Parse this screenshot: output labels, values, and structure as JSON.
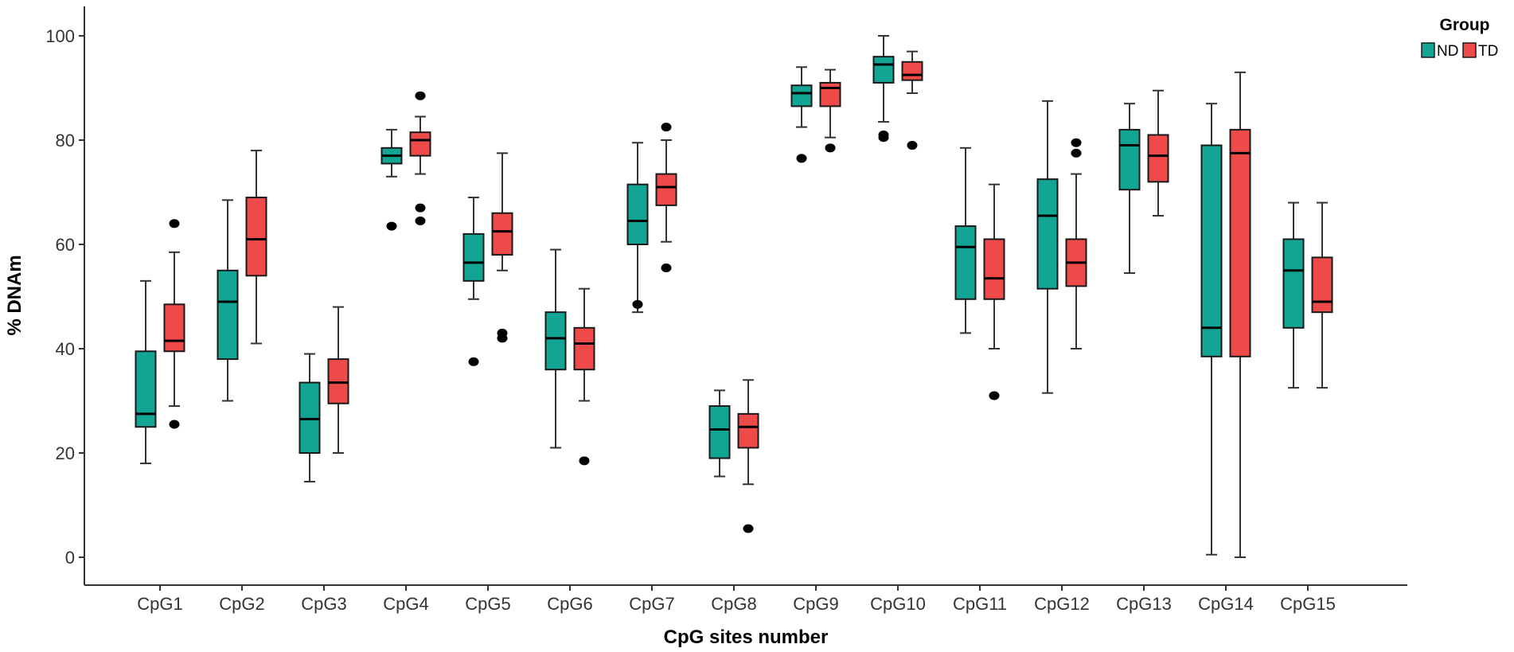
{
  "chart_data": {
    "type": "boxplot",
    "title": "",
    "xlabel": "CpG sites number",
    "ylabel": "% DNAm",
    "ylim": [
      -5,
      105
    ],
    "yticks": [
      0,
      20,
      40,
      60,
      80,
      100
    ],
    "grid": false,
    "legend": {
      "title": "Group",
      "position": "top-right"
    },
    "categories": [
      "CpG1",
      "CpG2",
      "CpG3",
      "CpG4",
      "CpG5",
      "CpG6",
      "CpG7",
      "CpG8",
      "CpG9",
      "CpG10",
      "CpG11",
      "CpG12",
      "CpG13",
      "CpG14",
      "CpG15"
    ],
    "series": [
      {
        "name": "ND",
        "color": "#13A594",
        "boxes": [
          {
            "whisker_low": 18,
            "q1": 25,
            "median": 27.5,
            "q3": 39.5,
            "whisker_high": 53,
            "outliers": []
          },
          {
            "whisker_low": 30,
            "q1": 38,
            "median": 49,
            "q3": 55,
            "whisker_high": 68.5,
            "outliers": []
          },
          {
            "whisker_low": 14.5,
            "q1": 20,
            "median": 26.5,
            "q3": 33.5,
            "whisker_high": 39,
            "outliers": []
          },
          {
            "whisker_low": 73,
            "q1": 75.5,
            "median": 77,
            "q3": 78.5,
            "whisker_high": 82,
            "outliers": [
              63.5
            ]
          },
          {
            "whisker_low": 49.5,
            "q1": 53,
            "median": 56.5,
            "q3": 62,
            "whisker_high": 69,
            "outliers": [
              37.5
            ]
          },
          {
            "whisker_low": 21,
            "q1": 36,
            "median": 42,
            "q3": 47,
            "whisker_high": 59,
            "outliers": []
          },
          {
            "whisker_low": 47,
            "q1": 60,
            "median": 64.5,
            "q3": 71.5,
            "whisker_high": 79.5,
            "outliers": [
              48.5
            ]
          },
          {
            "whisker_low": 15.5,
            "q1": 19,
            "median": 24.5,
            "q3": 29,
            "whisker_high": 32,
            "outliers": []
          },
          {
            "whisker_low": 82.5,
            "q1": 86.5,
            "median": 89,
            "q3": 90.5,
            "whisker_high": 94,
            "outliers": [
              76.5
            ]
          },
          {
            "whisker_low": 83.5,
            "q1": 91,
            "median": 94.5,
            "q3": 96,
            "whisker_high": 100,
            "outliers": [
              80.5,
              81
            ]
          },
          {
            "whisker_low": 43,
            "q1": 49.5,
            "median": 59.5,
            "q3": 63.5,
            "whisker_high": 78.5,
            "outliers": []
          },
          {
            "whisker_low": 31.5,
            "q1": 51.5,
            "median": 65.5,
            "q3": 72.5,
            "whisker_high": 87.5,
            "outliers": []
          },
          {
            "whisker_low": 54.5,
            "q1": 70.5,
            "median": 79,
            "q3": 82,
            "whisker_high": 87,
            "outliers": []
          },
          {
            "whisker_low": 0.5,
            "q1": 38.5,
            "median": 44,
            "q3": 79,
            "whisker_high": 87,
            "outliers": []
          },
          {
            "whisker_low": 32.5,
            "q1": 44,
            "median": 55,
            "q3": 61,
            "whisker_high": 68,
            "outliers": []
          }
        ]
      },
      {
        "name": "TD",
        "color": "#EF4A4A",
        "boxes": [
          {
            "whisker_low": 29,
            "q1": 39.5,
            "median": 41.5,
            "q3": 48.5,
            "whisker_high": 58.5,
            "outliers": [
              64,
              25.5
            ]
          },
          {
            "whisker_low": 41,
            "q1": 54,
            "median": 61,
            "q3": 69,
            "whisker_high": 78,
            "outliers": []
          },
          {
            "whisker_low": 20,
            "q1": 29.5,
            "median": 33.5,
            "q3": 38,
            "whisker_high": 48,
            "outliers": []
          },
          {
            "whisker_low": 73.5,
            "q1": 77,
            "median": 80,
            "q3": 81.5,
            "whisker_high": 84.5,
            "outliers": [
              88.5,
              67,
              64.5
            ]
          },
          {
            "whisker_low": 55,
            "q1": 58,
            "median": 62.5,
            "q3": 66,
            "whisker_high": 77.5,
            "outliers": [
              43,
              42
            ]
          },
          {
            "whisker_low": 30,
            "q1": 36,
            "median": 41,
            "q3": 44,
            "whisker_high": 51.5,
            "outliers": [
              18.5
            ]
          },
          {
            "whisker_low": 60.5,
            "q1": 67.5,
            "median": 71,
            "q3": 73.5,
            "whisker_high": 80,
            "outliers": [
              82.5,
              55.5
            ]
          },
          {
            "whisker_low": 14,
            "q1": 21,
            "median": 25,
            "q3": 27.5,
            "whisker_high": 34,
            "outliers": [
              5.5
            ]
          },
          {
            "whisker_low": 80.5,
            "q1": 86.5,
            "median": 90,
            "q3": 91,
            "whisker_high": 93.5,
            "outliers": [
              78.5
            ]
          },
          {
            "whisker_low": 89,
            "q1": 91.5,
            "median": 92.5,
            "q3": 95,
            "whisker_high": 97,
            "outliers": [
              79
            ]
          },
          {
            "whisker_low": 40,
            "q1": 49.5,
            "median": 53.5,
            "q3": 61,
            "whisker_high": 71.5,
            "outliers": [
              31
            ]
          },
          {
            "whisker_low": 40,
            "q1": 52,
            "median": 56.5,
            "q3": 61,
            "whisker_high": 73.5,
            "outliers": [
              79.5,
              77.5
            ]
          },
          {
            "whisker_low": 65.5,
            "q1": 72,
            "median": 77,
            "q3": 81,
            "whisker_high": 89.5,
            "outliers": []
          },
          {
            "whisker_low": 0,
            "q1": 38.5,
            "median": 77.5,
            "q3": 82,
            "whisker_high": 93,
            "outliers": []
          },
          {
            "whisker_low": 32.5,
            "q1": 47,
            "median": 49,
            "q3": 57.5,
            "whisker_high": 68,
            "outliers": []
          }
        ]
      }
    ]
  }
}
